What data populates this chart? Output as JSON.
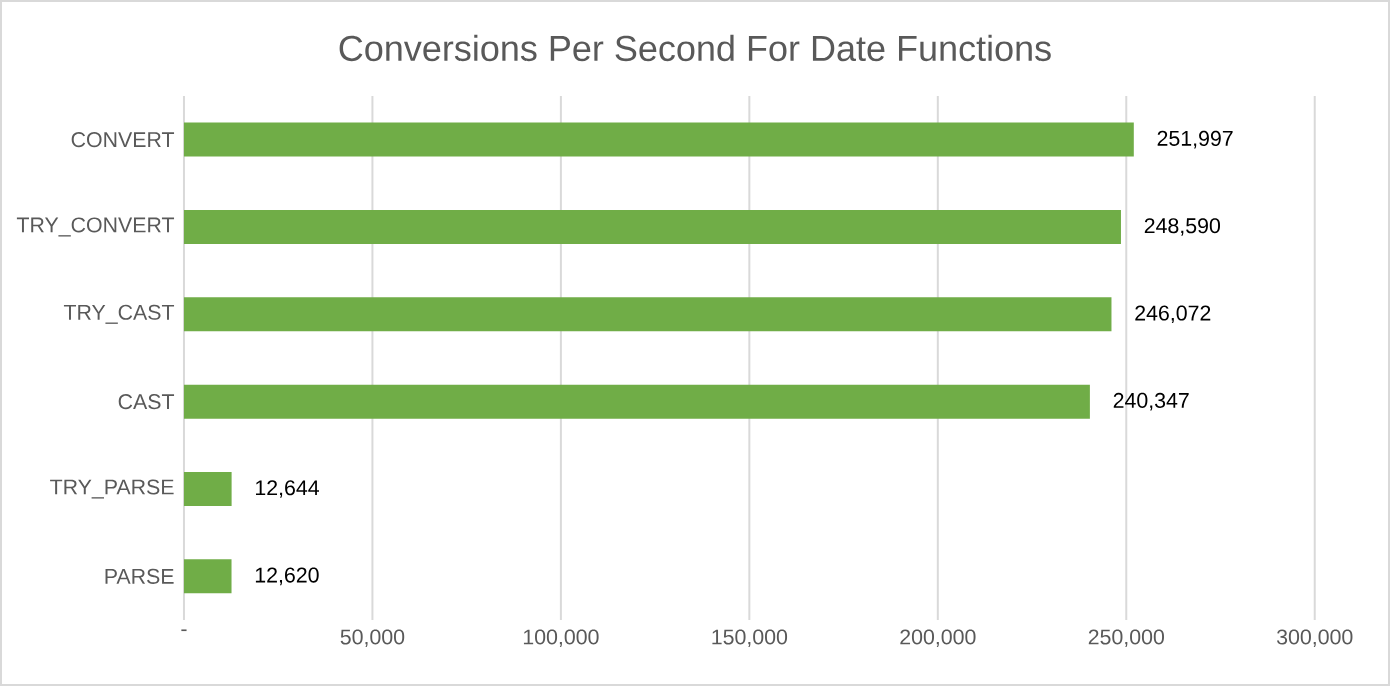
{
  "chart_data": {
    "type": "bar",
    "orientation": "horizontal",
    "title": "Conversions Per Second For Date Functions",
    "categories": [
      "CONVERT",
      "TRY_CONVERT",
      "TRY_CAST",
      "CAST",
      "TRY_PARSE",
      "PARSE"
    ],
    "values": [
      251997,
      248590,
      246072,
      240347,
      12644,
      12620
    ],
    "value_labels": [
      "251,997",
      "248,590",
      "246,072",
      "240,347",
      "12,644",
      "12,620"
    ],
    "color": "#70ad47",
    "xlim": [
      0,
      300000
    ],
    "xticks": [
      {
        "value": 0,
        "label": "-"
      },
      {
        "value": 50000,
        "label": "50,000"
      },
      {
        "value": 100000,
        "label": "100,000"
      },
      {
        "value": 150000,
        "label": "150,000"
      },
      {
        "value": 200000,
        "label": "200,000"
      },
      {
        "value": 250000,
        "label": "250,000"
      },
      {
        "value": 300000,
        "label": "300,000"
      }
    ],
    "grid": "x"
  }
}
